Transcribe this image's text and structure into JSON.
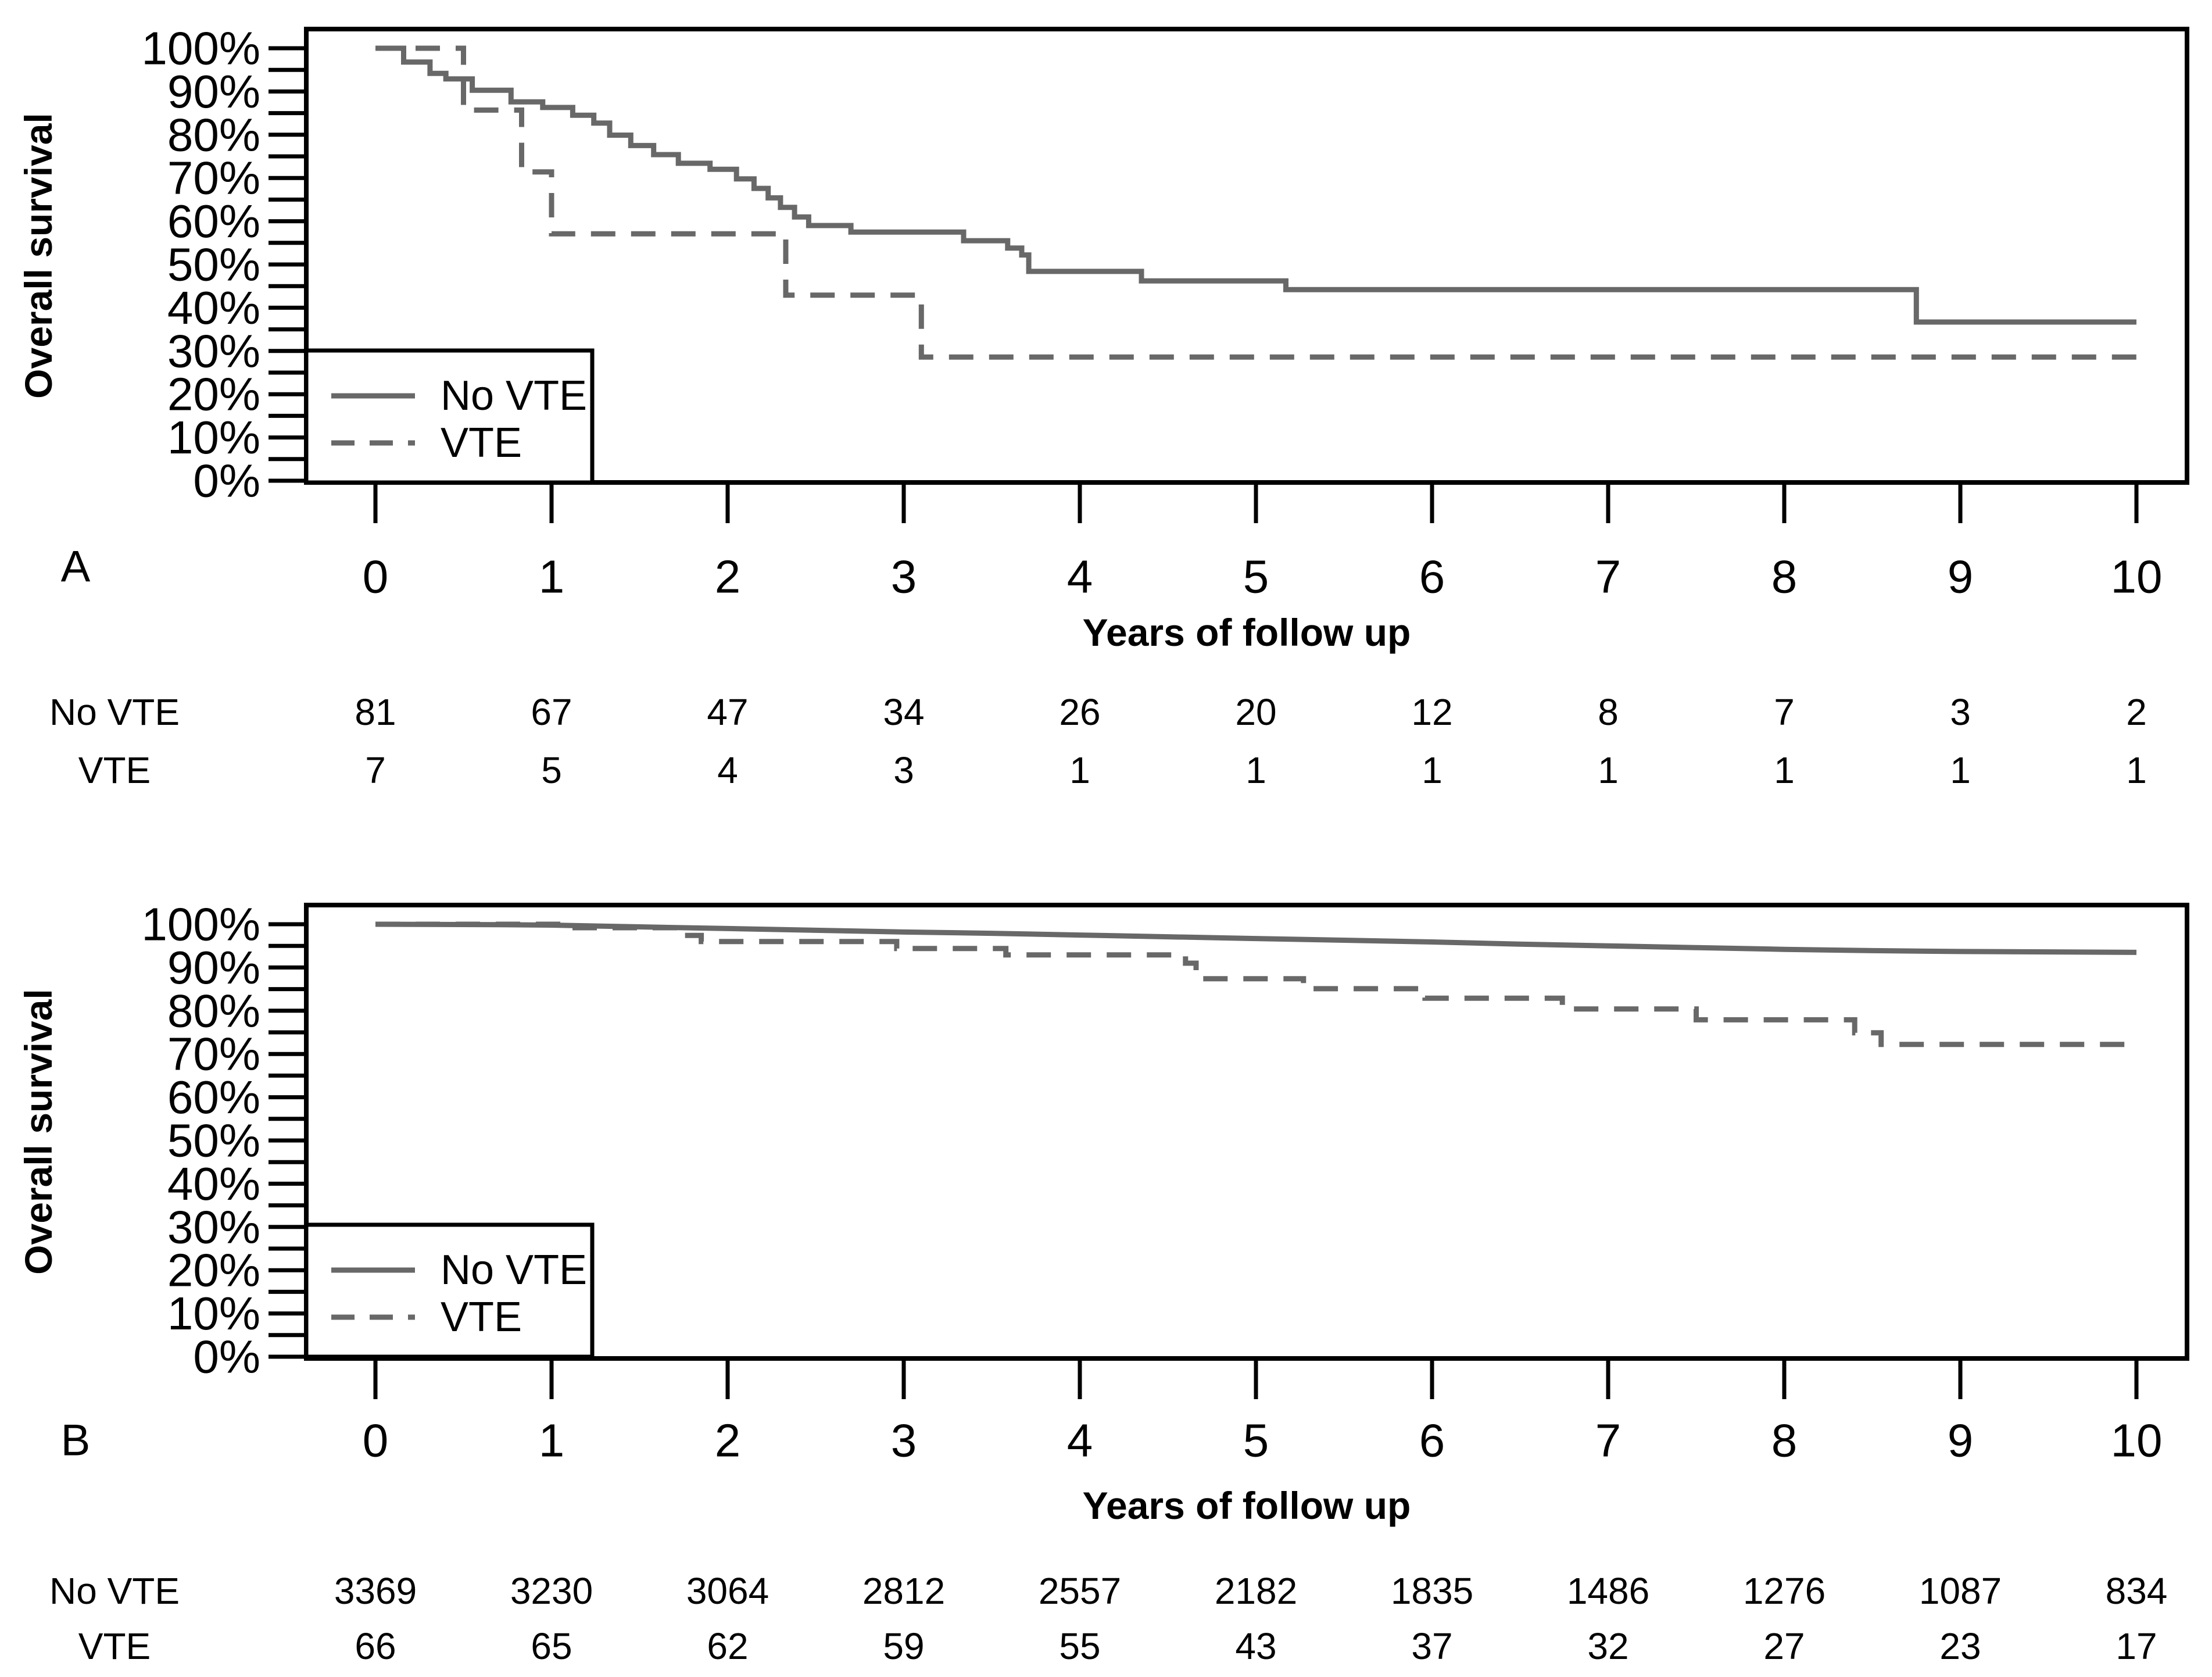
{
  "colors": {
    "curve": "#686868",
    "axis": "#000000",
    "background": "#ffffff"
  },
  "panels": [
    {
      "label": "A",
      "y_axis_title": "Overall survival",
      "x_axis_title": "Years of follow up",
      "y_tick_labels": [
        "0%",
        "10%",
        "20%",
        "30%",
        "40%",
        "50%",
        "60%",
        "70%",
        "80%",
        "90%",
        "100%"
      ],
      "x_tick_labels": [
        "0",
        "1",
        "2",
        "3",
        "4",
        "5",
        "6",
        "7",
        "8",
        "9",
        "10"
      ],
      "legend": {
        "items": [
          {
            "label": "No VTE",
            "style": "solid"
          },
          {
            "label": "VTE",
            "style": "dashed"
          }
        ]
      },
      "risk_table": {
        "rows": [
          {
            "label": "No VTE",
            "values": [
              "81",
              "67",
              "47",
              "34",
              "26",
              "20",
              "12",
              "8",
              "7",
              "3",
              "2"
            ]
          },
          {
            "label": "VTE",
            "values": [
              "7",
              "5",
              "4",
              "3",
              "1",
              "1",
              "1",
              "1",
              "1",
              "1",
              "1"
            ]
          }
        ]
      }
    },
    {
      "label": "B",
      "y_axis_title": "Overall survival",
      "x_axis_title": "Years of follow up",
      "y_tick_labels": [
        "0%",
        "10%",
        "20%",
        "30%",
        "40%",
        "50%",
        "60%",
        "70%",
        "80%",
        "90%",
        "100%"
      ],
      "x_tick_labels": [
        "0",
        "1",
        "2",
        "3",
        "4",
        "5",
        "6",
        "7",
        "8",
        "9",
        "10"
      ],
      "legend": {
        "items": [
          {
            "label": "No VTE",
            "style": "solid"
          },
          {
            "label": "VTE",
            "style": "dashed"
          }
        ]
      },
      "risk_table": {
        "rows": [
          {
            "label": "No VTE",
            "values": [
              "3369",
              "3230",
              "3064",
              "2812",
              "2557",
              "2182",
              "1835",
              "1486",
              "1276",
              "1087",
              "834"
            ]
          },
          {
            "label": "VTE",
            "values": [
              "66",
              "65",
              "62",
              "59",
              "55",
              "43",
              "37",
              "32",
              "27",
              "23",
              "17"
            ]
          }
        ]
      }
    }
  ],
  "chart_data": [
    {
      "type": "line",
      "subtype": "kaplan-meier",
      "title": "",
      "xlabel": "Years of follow up",
      "ylabel": "Overall survival",
      "xlim": [
        0,
        10
      ],
      "ylim": [
        0,
        100
      ],
      "x_ticks": [
        0,
        1,
        2,
        3,
        4,
        5,
        6,
        7,
        8,
        9,
        10
      ],
      "y_tick_step_major": 10,
      "y_tick_step_minor": 5,
      "grid": false,
      "legend_position": "bottom-left",
      "series": [
        {
          "name": "No VTE",
          "style": "solid",
          "mode": "step",
          "points": [
            [
              0,
              100
            ],
            [
              0.16,
              96.8
            ],
            [
              0.31,
              94.2
            ],
            [
              0.4,
              92.9
            ],
            [
              0.55,
              90.3
            ],
            [
              0.77,
              87.6
            ],
            [
              0.95,
              86.3
            ],
            [
              1.12,
              84.5
            ],
            [
              1.24,
              82.7
            ],
            [
              1.33,
              79.9
            ],
            [
              1.45,
              77.5
            ],
            [
              1.58,
              75.4
            ],
            [
              1.72,
              73.4
            ],
            [
              1.9,
              72.0
            ],
            [
              2.05,
              69.8
            ],
            [
              2.15,
              67.6
            ],
            [
              2.23,
              65.4
            ],
            [
              2.3,
              63.2
            ],
            [
              2.38,
              61.0
            ],
            [
              2.46,
              59.0
            ],
            [
              2.7,
              57.5
            ],
            [
              3.34,
              55.5
            ],
            [
              3.59,
              53.8
            ],
            [
              3.67,
              52.2
            ],
            [
              3.71,
              48.4
            ],
            [
              4.35,
              46.2
            ],
            [
              5.17,
              44.2
            ],
            [
              8.75,
              36.7
            ],
            [
              10,
              36.7
            ]
          ]
        },
        {
          "name": "VTE",
          "style": "dashed",
          "mode": "step",
          "points": [
            [
              0,
              100
            ],
            [
              0.5,
              85.7
            ],
            [
              0.83,
              71.4
            ],
            [
              1.0,
              57.1
            ],
            [
              2.33,
              42.9
            ],
            [
              3.1,
              28.6
            ],
            [
              10,
              28.6
            ]
          ]
        }
      ]
    },
    {
      "type": "line",
      "subtype": "kaplan-meier",
      "title": "",
      "xlabel": "Years of follow up",
      "ylabel": "Overall survival",
      "xlim": [
        0,
        10
      ],
      "ylim": [
        0,
        100
      ],
      "x_ticks": [
        0,
        1,
        2,
        3,
        4,
        5,
        6,
        7,
        8,
        9,
        10
      ],
      "y_tick_step_major": 10,
      "y_tick_step_minor": 5,
      "grid": false,
      "legend_position": "bottom-left",
      "series": [
        {
          "name": "No VTE",
          "style": "solid",
          "mode": "linear",
          "points": [
            [
              0,
              100
            ],
            [
              0.7,
              99.9
            ],
            [
              1.0,
              99.8
            ],
            [
              1.5,
              99.4
            ],
            [
              2.0,
              99.0
            ],
            [
              2.5,
              98.6
            ],
            [
              3.0,
              98.2
            ],
            [
              3.5,
              97.9
            ],
            [
              4.0,
              97.5
            ],
            [
              4.5,
              97.1
            ],
            [
              5.0,
              96.7
            ],
            [
              5.5,
              96.3
            ],
            [
              6.0,
              95.9
            ],
            [
              6.5,
              95.4
            ],
            [
              7.0,
              95.0
            ],
            [
              7.5,
              94.6
            ],
            [
              8.0,
              94.2
            ],
            [
              8.5,
              93.9
            ],
            [
              9.0,
              93.7
            ],
            [
              10,
              93.5
            ]
          ]
        },
        {
          "name": "VTE",
          "style": "dashed",
          "mode": "step",
          "points": [
            [
              0,
              100
            ],
            [
              1.05,
              99.2
            ],
            [
              1.72,
              97.4
            ],
            [
              1.85,
              96.0
            ],
            [
              2.96,
              94.4
            ],
            [
              3.58,
              92.9
            ],
            [
              4.6,
              91.0
            ],
            [
              4.66,
              87.4
            ],
            [
              5.27,
              85.1
            ],
            [
              5.96,
              82.9
            ],
            [
              6.74,
              80.4
            ],
            [
              7.5,
              77.9
            ],
            [
              8.4,
              74.9
            ],
            [
              8.55,
              72.2
            ],
            [
              10,
              72.2
            ]
          ]
        }
      ]
    }
  ]
}
